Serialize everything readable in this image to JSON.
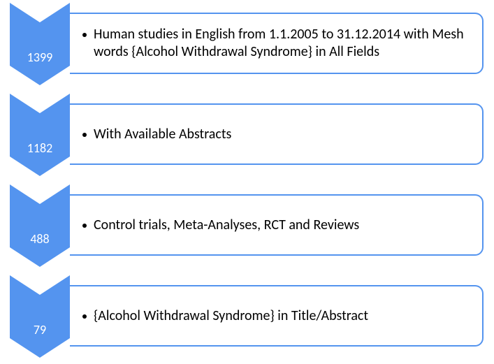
{
  "diagram": {
    "type": "flowchart",
    "background_color": "#ffffff",
    "chevron_fill": "#5494ef",
    "border_color": "#5494ef",
    "text_color_light": "#ffffff",
    "text_color_dark": "#000000",
    "count_fontsize": 18,
    "desc_fontsize": 20,
    "border_width": 2,
    "corner_radius": 12,
    "chevron_width": 86,
    "chevron_height": 118,
    "desc_box_width": 592,
    "desc_box_height": 88,
    "row_gap": 12,
    "stages": [
      {
        "count": "1399",
        "description": "Human studies in English from 1.1.2005 to 31.12.2014 with Mesh words {Alcohol Withdrawal Syndrome} in All Fields"
      },
      {
        "count": "1182",
        "description": "With Available Abstracts"
      },
      {
        "count": "488",
        "description": "Control trials, Meta-Analyses, RCT and Reviews"
      },
      {
        "count": "79",
        "description": "{Alcohol Withdrawal Syndrome} in Title/Abstract"
      }
    ]
  }
}
